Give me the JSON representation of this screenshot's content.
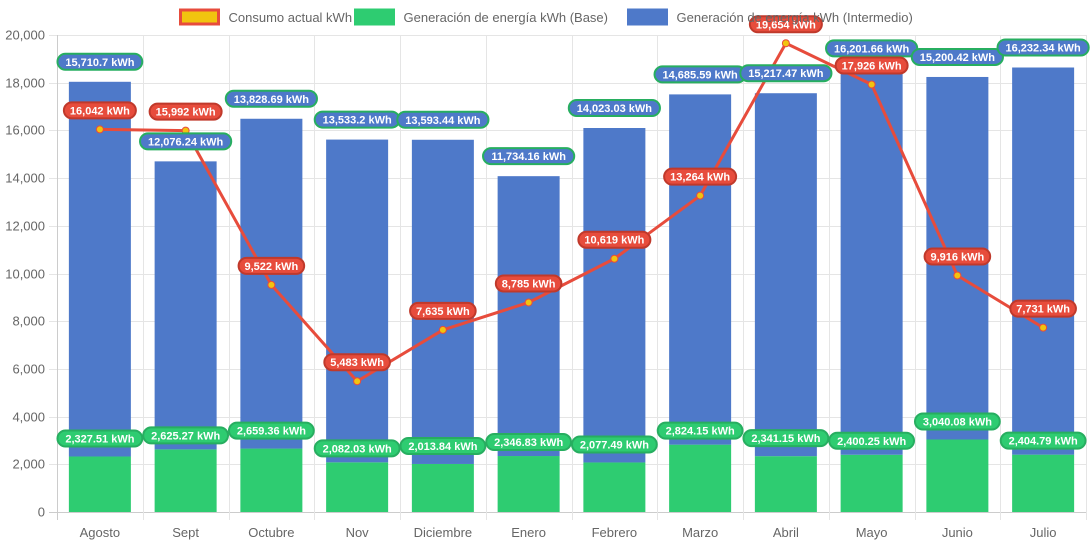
{
  "chart_data": {
    "type": "bar",
    "title": "",
    "xlabel": "",
    "ylabel": "",
    "ylim": [
      0,
      20000
    ],
    "ytick_step": 2000,
    "grid": true,
    "legend_position": "top",
    "categories": [
      "Agosto",
      "Sept",
      "Octubre",
      "Nov",
      "Diciembre",
      "Enero",
      "Febrero",
      "Marzo",
      "Abril",
      "Mayo",
      "Junio",
      "Julio"
    ],
    "series": [
      {
        "name": "Consumo actual kWh",
        "type": "line",
        "color": "#e74c3c",
        "point_color": "#f1c40f",
        "values": [
          16042,
          15992,
          9522,
          5483,
          7635,
          8785,
          10619,
          13264,
          19654,
          17926,
          9916,
          7731
        ],
        "labels": [
          "16,042 kWh",
          "15,992 kWh",
          "9,522 kWh",
          "5,483 kWh",
          "7,635 kWh",
          "8,785 kWh",
          "10,619 kWh",
          "13,264 kWh",
          "19,654 kWh",
          "17,926 kWh",
          "9,916 kWh",
          "7,731 kWh"
        ]
      },
      {
        "name": "Generación de energía kWh (Base)",
        "type": "bar",
        "stack": "gen",
        "color": "#2ecc71",
        "values": [
          2327.51,
          2625.27,
          2659.36,
          2082.03,
          2013.84,
          2346.83,
          2077.49,
          2824.15,
          2341.15,
          2400.25,
          3040.08,
          2404.79
        ],
        "labels": [
          "2,327.51 kWh",
          "2,625.27 kWh",
          "2,659.36 kWh",
          "2,082.03 kWh",
          "2,013.84 kWh",
          "2,346.83 kWh",
          "2,077.49 kWh",
          "2,824.15 kWh",
          "2,341.15 kWh",
          "2,400.25 kWh",
          "3,040.08 kWh",
          "2,404.79 kWh"
        ]
      },
      {
        "name": "Generación de energía kWh (Intermedio)",
        "type": "bar",
        "stack": "gen",
        "color": "#4e79c9",
        "values": [
          15710.7,
          12076.24,
          13828.69,
          13533.2,
          13593.44,
          11734.16,
          14023.03,
          14685.59,
          15217.47,
          16201.66,
          15200.42,
          16232.34
        ],
        "labels": [
          "15,710.7 kWh",
          "12,076.24 kWh",
          "13,828.69 kWh",
          "13,533.2 kWh",
          "13,593.44 kWh",
          "11,734.16 kWh",
          "14,023.03 kWh",
          "14,685.59 kWh",
          "15,217.47 kWh",
          "16,201.66 kWh",
          "15,200.42 kWh",
          "16,232.34 kWh"
        ]
      }
    ],
    "yticks": [
      "0",
      "2,000",
      "4,000",
      "6,000",
      "8,000",
      "10,000",
      "12,000",
      "14,000",
      "16,000",
      "18,000",
      "20,000"
    ]
  },
  "legend": [
    {
      "label": "Consumo actual kWh",
      "fill": "#f1c40f",
      "border": "#e74c3c"
    },
    {
      "label": "Generación de energía kWh (Base)",
      "fill": "#2ecc71",
      "border": "#2ecc71"
    },
    {
      "label": "Generación de energía kWh (Intermedio)",
      "fill": "#4e79c9",
      "border": "#4e79c9"
    }
  ]
}
